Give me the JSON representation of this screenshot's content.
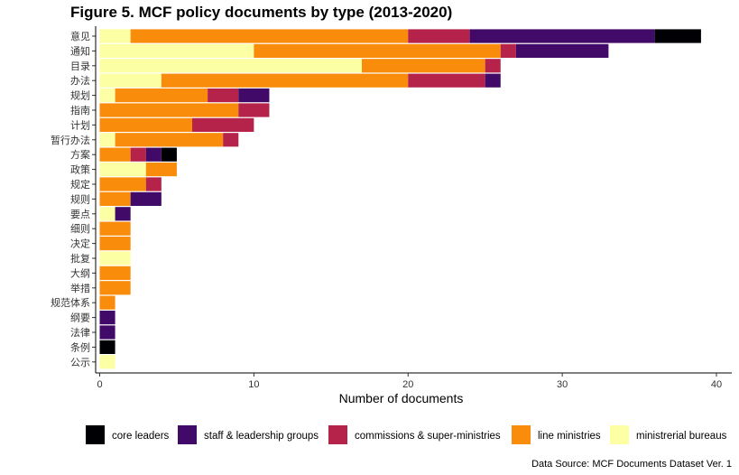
{
  "chart_data": {
    "type": "bar",
    "orientation": "horizontal",
    "stacked": true,
    "title": "Figure 5. MCF policy documents by type (2013-2020)",
    "xlabel": "Number of documents",
    "ylabel": "",
    "xlim": [
      0,
      40
    ],
    "xticks": [
      0,
      10,
      20,
      30,
      40
    ],
    "grid": false,
    "legend_position": "bottom",
    "caption": "Data Source: MCF Documents Dataset Ver. 1",
    "categories": [
      "意见",
      "通知",
      "目录",
      "办法",
      "规划",
      "指南",
      "计划",
      "暂行办法",
      "方案",
      "政策",
      "规定",
      "规则",
      "要点",
      "细则",
      "决定",
      "批复",
      "大纲",
      "举措",
      "规范体系",
      "纲要",
      "法律",
      "条例",
      "公示"
    ],
    "series": [
      {
        "name": "ministrerial bureaus",
        "color": "#FCFFA4",
        "values": [
          2,
          10,
          17,
          4,
          1,
          0,
          0,
          1,
          0,
          3,
          0,
          0,
          1,
          0,
          0,
          2,
          0,
          0,
          0,
          0,
          0,
          0,
          1
        ]
      },
      {
        "name": "line ministries",
        "color": "#F98C0A",
        "values": [
          18,
          16,
          8,
          16,
          6,
          9,
          6,
          7,
          2,
          2,
          3,
          2,
          0,
          2,
          2,
          0,
          2,
          2,
          1,
          0,
          0,
          0,
          0
        ]
      },
      {
        "name": "commissions & super-ministries",
        "color": "#B5224A",
        "values": [
          4,
          1,
          1,
          5,
          2,
          2,
          4,
          1,
          1,
          0,
          1,
          0,
          0,
          0,
          0,
          0,
          0,
          0,
          0,
          0,
          0,
          0,
          0
        ]
      },
      {
        "name": "staff & leadership groups",
        "color": "#420A68",
        "values": [
          12,
          6,
          0,
          1,
          2,
          0,
          0,
          0,
          1,
          0,
          0,
          2,
          1,
          0,
          0,
          0,
          0,
          0,
          0,
          1,
          1,
          0,
          0
        ]
      },
      {
        "name": "core leaders",
        "color": "#000004",
        "values": [
          3,
          0,
          0,
          0,
          0,
          0,
          0,
          0,
          1,
          0,
          0,
          0,
          0,
          0,
          0,
          0,
          0,
          0,
          0,
          0,
          0,
          1,
          0
        ]
      }
    ],
    "legend_order": [
      "core leaders",
      "staff & leadership groups",
      "commissions & super-ministries",
      "line ministries",
      "ministrerial bureaus"
    ]
  }
}
